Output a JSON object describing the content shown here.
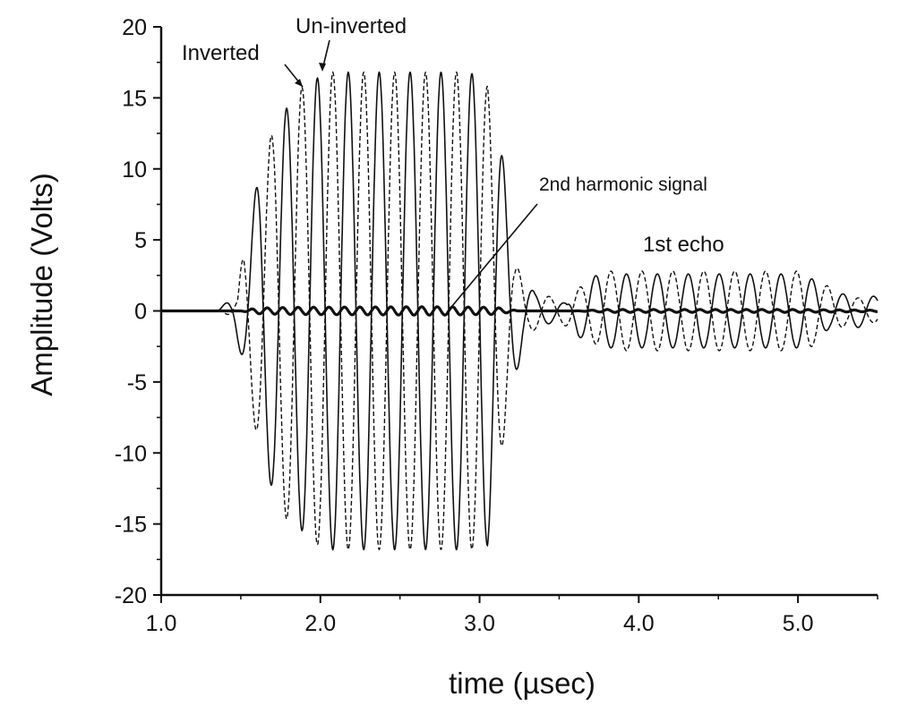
{
  "chart_data": {
    "type": "line",
    "xlabel": "time (µsec)",
    "ylabel": "Amplitude (Volts)",
    "xlim": [
      1.0,
      5.5
    ],
    "ylim": [
      -20,
      20
    ],
    "x_ticks": [
      "1.0",
      "2.0",
      "3.0",
      "4.0",
      "5.0"
    ],
    "y_ticks": [
      "20",
      "15",
      "10",
      "5",
      "0",
      "-5",
      "-10",
      "-15",
      "-20"
    ],
    "annotations": {
      "inverted": "Inverted",
      "uninverted": "Un-inverted",
      "harmonic": "2nd harmonic signal",
      "echo": "1st echo"
    },
    "series": [
      {
        "key": "uninverted",
        "style": "solid",
        "frequency_mhz": 5.15,
        "envelope_points": [
          [
            1.0,
            0
          ],
          [
            1.35,
            0
          ],
          [
            1.45,
            1
          ],
          [
            1.55,
            5
          ],
          [
            1.62,
            10.5
          ],
          [
            1.72,
            13
          ],
          [
            1.8,
            14.5
          ],
          [
            1.95,
            16.2
          ],
          [
            2.05,
            16.8
          ],
          [
            2.9,
            16.8
          ],
          [
            3.05,
            16.5
          ],
          [
            3.13,
            12
          ],
          [
            3.2,
            6
          ],
          [
            3.27,
            2.5
          ],
          [
            3.35,
            1.2
          ],
          [
            3.55,
            0.5
          ],
          [
            3.62,
            1.8
          ],
          [
            3.75,
            2.6
          ],
          [
            5.0,
            2.6
          ],
          [
            5.1,
            2.2
          ],
          [
            5.2,
            1.2
          ],
          [
            5.35,
            1.2
          ],
          [
            5.5,
            1.0
          ]
        ],
        "dc_offset_points": [
          [
            1.0,
            0
          ],
          [
            2.0,
            0.7
          ],
          [
            3.0,
            0.7
          ],
          [
            3.3,
            0
          ],
          [
            3.6,
            0
          ],
          [
            4.0,
            0
          ],
          [
            5.5,
            0
          ]
        ]
      },
      {
        "key": "inverted",
        "style": "dashed",
        "frequency_mhz": 5.15,
        "envelope_points": [
          [
            1.0,
            0
          ],
          [
            1.38,
            0
          ],
          [
            1.48,
            0.8
          ],
          [
            1.52,
            5
          ],
          [
            1.62,
            9.5
          ],
          [
            1.72,
            13.5
          ],
          [
            1.82,
            15.2
          ],
          [
            1.95,
            16.3
          ],
          [
            2.05,
            16.8
          ],
          [
            2.95,
            16.8
          ],
          [
            3.05,
            15.8
          ],
          [
            3.15,
            9
          ],
          [
            3.22,
            3.5
          ],
          [
            3.3,
            1.5
          ],
          [
            3.5,
            0.8
          ],
          [
            3.65,
            1.8
          ],
          [
            3.8,
            2.8
          ],
          [
            5.05,
            2.8
          ],
          [
            5.15,
            2.0
          ],
          [
            5.3,
            1.0
          ],
          [
            5.5,
            0.8
          ]
        ],
        "dc_offset_points": [
          [
            1.0,
            0
          ],
          [
            2.0,
            0.7
          ],
          [
            3.0,
            0.7
          ],
          [
            3.3,
            0
          ],
          [
            3.6,
            0
          ],
          [
            4.0,
            0
          ],
          [
            5.5,
            0
          ]
        ]
      },
      {
        "key": "harmonic",
        "style": "bold",
        "frequency_mhz": 10.3,
        "envelope_points": [
          [
            1.0,
            0
          ],
          [
            1.5,
            0
          ],
          [
            1.6,
            0.2
          ],
          [
            1.8,
            0.25
          ],
          [
            2.7,
            0.3
          ],
          [
            3.1,
            0.25
          ],
          [
            3.25,
            0
          ],
          [
            3.6,
            0
          ],
          [
            3.8,
            0.1
          ],
          [
            5.0,
            0.1
          ],
          [
            5.5,
            0.05
          ]
        ],
        "dc_offset_points": [
          [
            1.0,
            0
          ],
          [
            5.5,
            0
          ]
        ]
      }
    ]
  }
}
